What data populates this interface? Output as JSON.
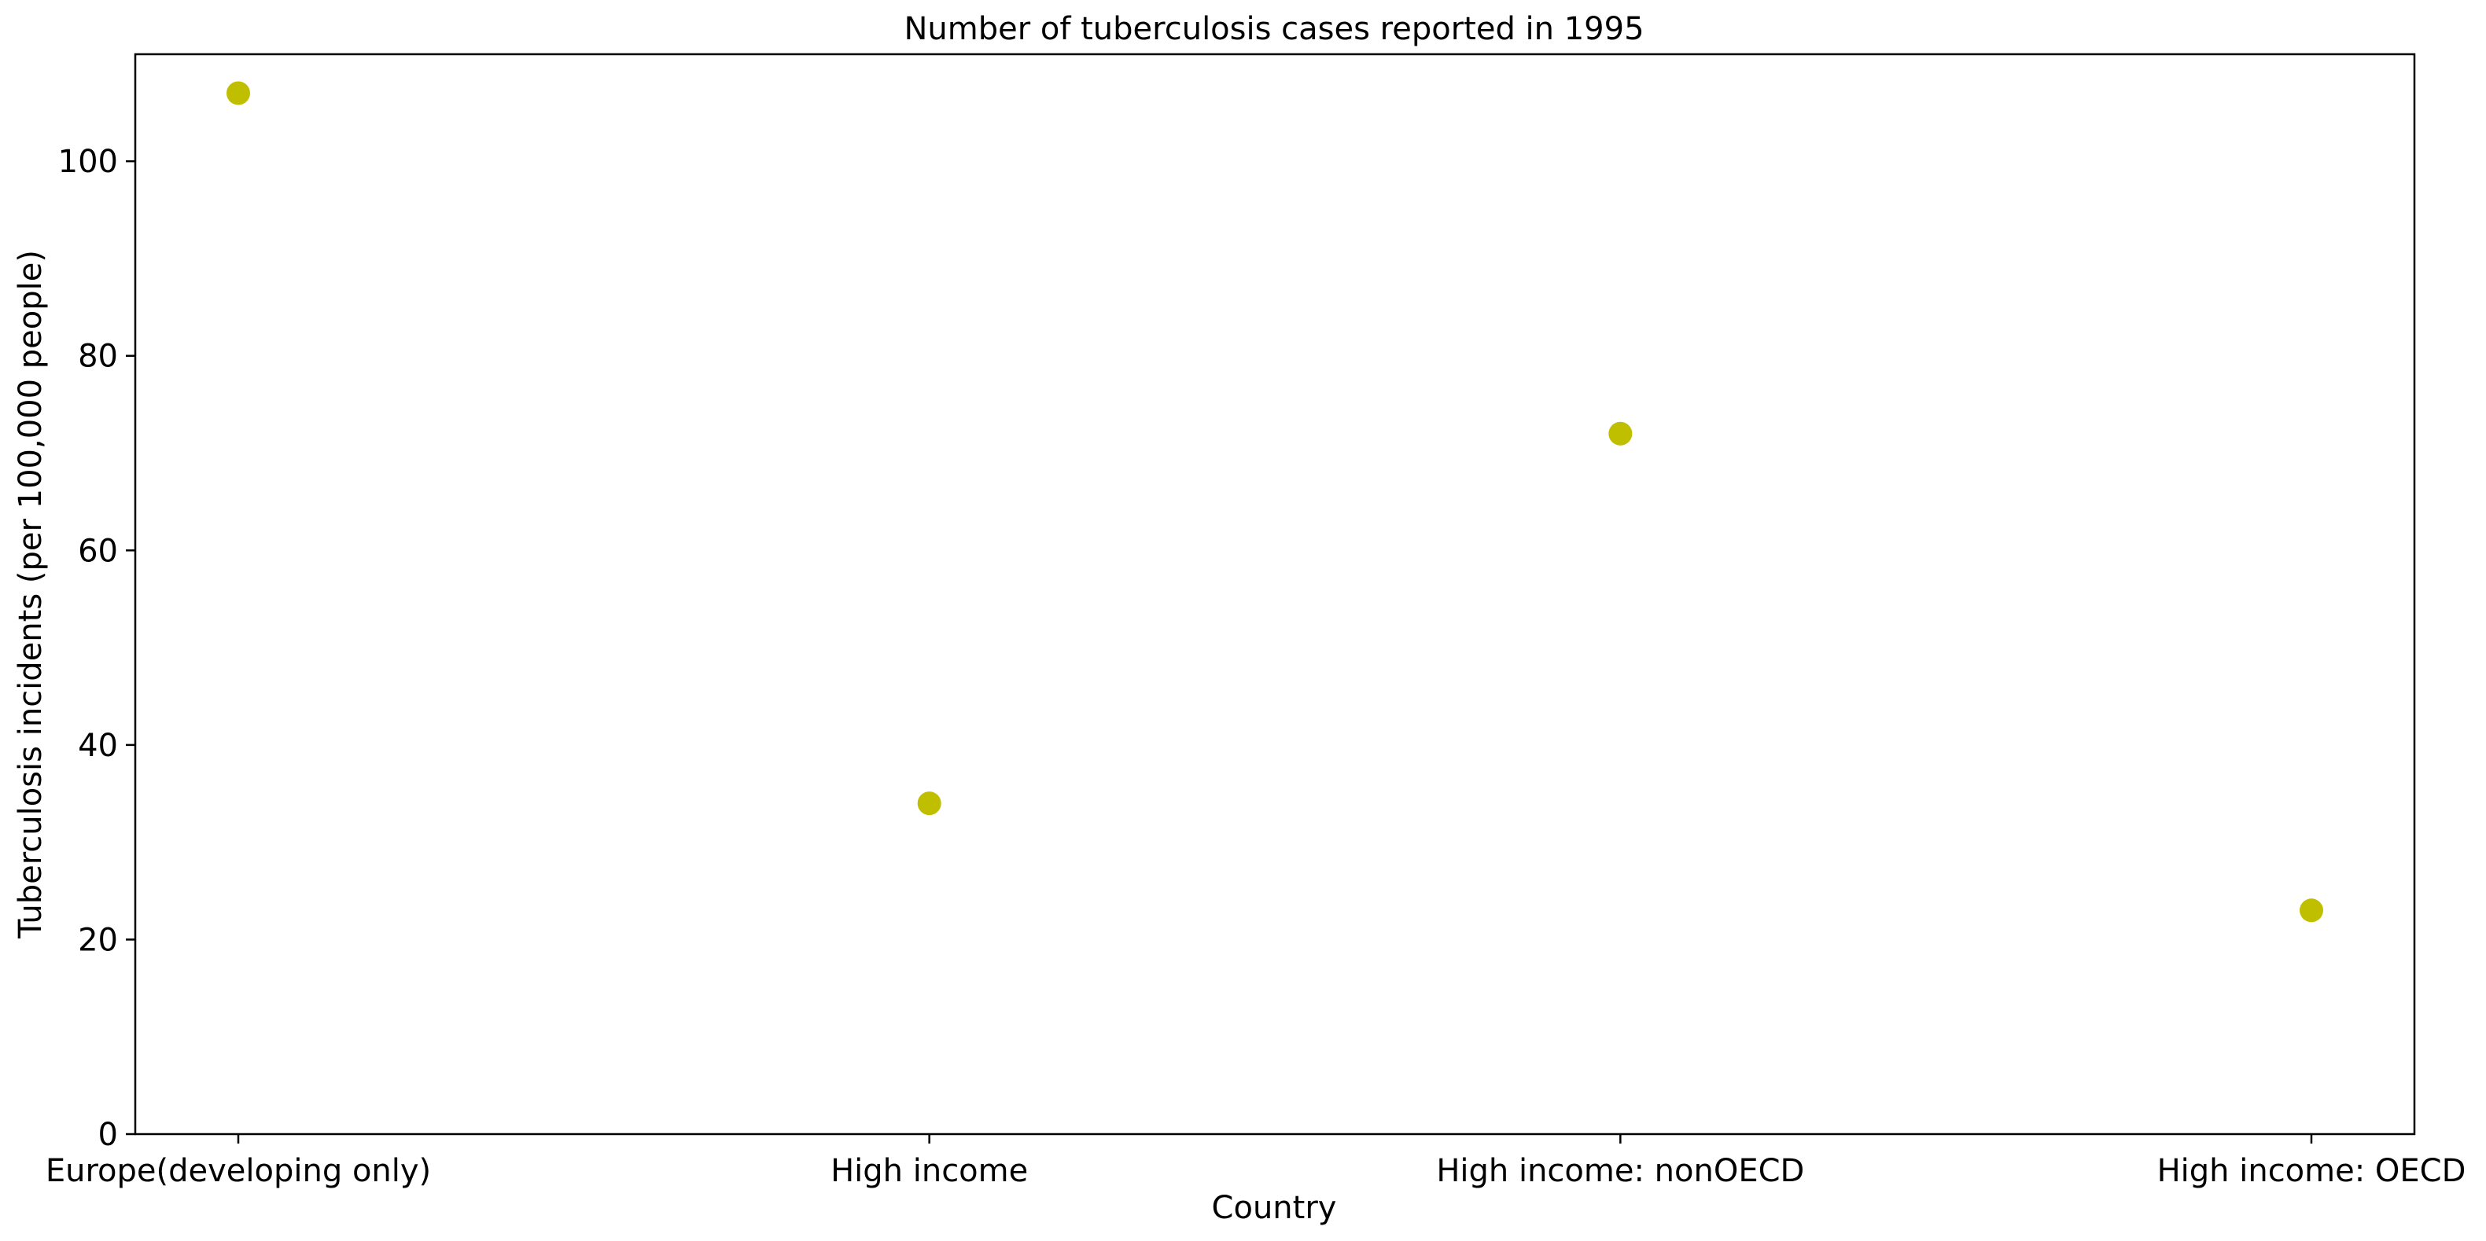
{
  "chart_data": {
    "type": "scatter",
    "title": "Number of tuberculosis cases reported in 1995",
    "xlabel": "Country",
    "ylabel": "Tuberculosis incidents (per 100,000 people)",
    "categories": [
      "Europe(developing only)",
      "High income",
      "High income: nonOECD",
      "High income: OECD"
    ],
    "values": [
      107,
      34,
      72,
      23
    ],
    "ylim": [
      0,
      111
    ],
    "yticks": [
      0,
      20,
      40,
      60,
      80,
      100
    ],
    "grid": false,
    "legend": "none",
    "marker_color": "#bfbf00"
  }
}
